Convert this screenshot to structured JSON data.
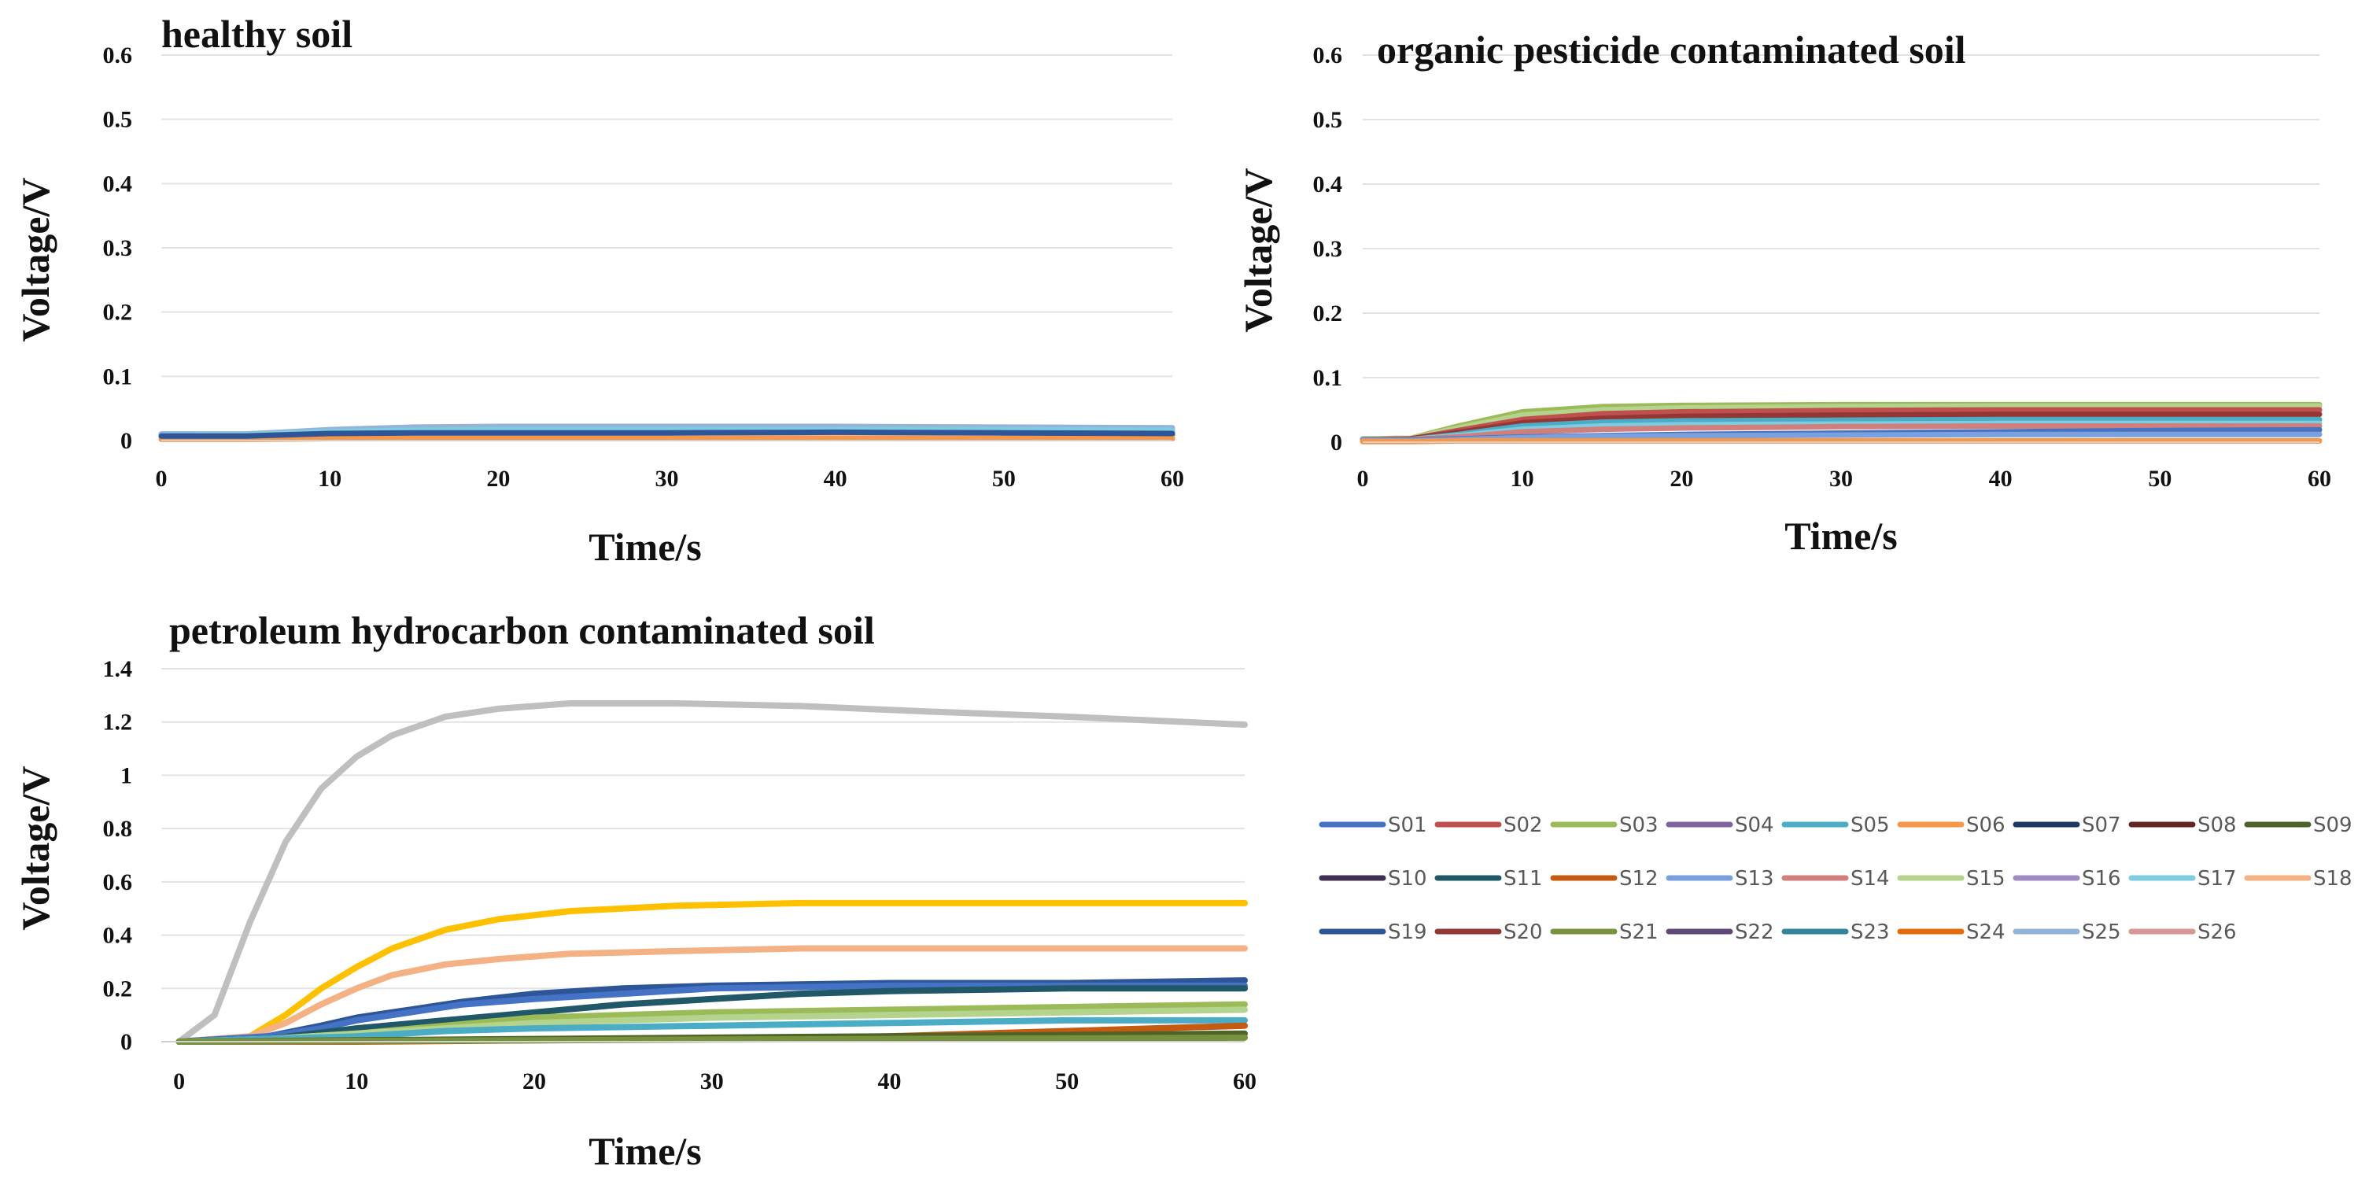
{
  "chart_data": [
    {
      "type": "line",
      "title": "healthy soil",
      "xlabel": "Time/s",
      "ylabel": "Voltage/V",
      "xlim": [
        0,
        60
      ],
      "ylim": [
        0,
        0.6
      ],
      "xticks": [
        "0",
        "10",
        "20",
        "30",
        "40",
        "50",
        "60"
      ],
      "yticks": [
        "0",
        "0.1",
        "0.2",
        "0.3",
        "0.4",
        "0.5",
        "0.6"
      ],
      "grid": true,
      "series_note": "26 overlapping traces S01-S26, all between 0 and 0.02 V",
      "series": [
        {
          "name": "S01",
          "x": [
            0,
            5,
            10,
            15,
            20,
            30,
            40,
            50,
            60
          ],
          "values": [
            0.008,
            0.008,
            0.012,
            0.013,
            0.013,
            0.013,
            0.014,
            0.013,
            0.012
          ]
        },
        {
          "name": "S07",
          "x": [
            0,
            5,
            10,
            15,
            20,
            30,
            40,
            50,
            60
          ],
          "values": [
            0.006,
            0.006,
            0.009,
            0.01,
            0.01,
            0.01,
            0.011,
            0.01,
            0.009
          ]
        },
        {
          "name": "S13",
          "x": [
            0,
            5,
            10,
            15,
            20,
            30,
            40,
            50,
            60
          ],
          "values": [
            0.01,
            0.01,
            0.016,
            0.019,
            0.02,
            0.02,
            0.02,
            0.02,
            0.019
          ]
        },
        {
          "name": "S25",
          "x": [
            0,
            5,
            10,
            15,
            20,
            30,
            40,
            50,
            60
          ],
          "values": [
            0.009,
            0.01,
            0.017,
            0.021,
            0.022,
            0.022,
            0.022,
            0.021,
            0.02
          ]
        },
        {
          "name": "S18",
          "x": [
            0,
            5,
            10,
            15,
            20,
            30,
            40,
            50,
            60
          ],
          "values": [
            0.004,
            0.004,
            0.005,
            0.005,
            0.005,
            0.005,
            0.005,
            0.005,
            0.005
          ]
        },
        {
          "name": "S06",
          "x": [
            0,
            5,
            10,
            15,
            20,
            30,
            40,
            50,
            60
          ],
          "values": [
            0.002,
            0.002,
            0.003,
            0.003,
            0.003,
            0.003,
            0.003,
            0.003,
            0.003
          ]
        },
        {
          "name": "S17",
          "x": [
            0,
            5,
            10,
            15,
            20,
            30,
            40,
            50,
            60
          ],
          "values": [
            0.008,
            0.009,
            0.014,
            0.016,
            0.017,
            0.017,
            0.017,
            0.017,
            0.016
          ]
        },
        {
          "name": "S19",
          "x": [
            0,
            5,
            10,
            15,
            20,
            30,
            40,
            50,
            60
          ],
          "values": [
            0.007,
            0.007,
            0.011,
            0.012,
            0.012,
            0.012,
            0.013,
            0.012,
            0.011
          ]
        }
      ]
    },
    {
      "type": "line",
      "title": "organic pesticide contaminated soil",
      "xlabel": "Time/s",
      "ylabel": "Voltage/V",
      "xlim": [
        0,
        60
      ],
      "ylim": [
        0,
        0.6
      ],
      "xticks": [
        "0",
        "10",
        "20",
        "30",
        "40",
        "50",
        "60"
      ],
      "yticks": [
        "0",
        "0.1",
        "0.2",
        "0.3",
        "0.4",
        "0.5",
        "0.6"
      ],
      "grid": true,
      "series_note": "26 overlapping traces S01-S26, all between 0 and 0.06 V",
      "series": [
        {
          "name": "S03",
          "x": [
            0,
            3,
            6,
            10,
            15,
            20,
            30,
            40,
            50,
            60
          ],
          "values": [
            0.005,
            0.006,
            0.025,
            0.047,
            0.055,
            0.057,
            0.058,
            0.058,
            0.058,
            0.058
          ]
        },
        {
          "name": "S15",
          "x": [
            0,
            3,
            6,
            10,
            15,
            20,
            30,
            40,
            50,
            60
          ],
          "values": [
            0.005,
            0.006,
            0.022,
            0.042,
            0.05,
            0.053,
            0.055,
            0.056,
            0.056,
            0.056
          ]
        },
        {
          "name": "S02",
          "x": [
            0,
            3,
            6,
            10,
            15,
            20,
            30,
            40,
            50,
            60
          ],
          "values": [
            0.004,
            0.005,
            0.018,
            0.035,
            0.044,
            0.047,
            0.049,
            0.05,
            0.05,
            0.05
          ]
        },
        {
          "name": "S20",
          "x": [
            0,
            3,
            6,
            10,
            15,
            20,
            30,
            40,
            50,
            60
          ],
          "values": [
            0.004,
            0.005,
            0.015,
            0.03,
            0.037,
            0.04,
            0.042,
            0.043,
            0.043,
            0.043
          ]
        },
        {
          "name": "S05",
          "x": [
            0,
            3,
            6,
            10,
            15,
            20,
            30,
            40,
            50,
            60
          ],
          "values": [
            0.004,
            0.004,
            0.012,
            0.025,
            0.031,
            0.033,
            0.034,
            0.035,
            0.035,
            0.035
          ]
        },
        {
          "name": "S17",
          "x": [
            0,
            3,
            6,
            10,
            15,
            20,
            30,
            40,
            50,
            60
          ],
          "values": [
            0.003,
            0.004,
            0.01,
            0.02,
            0.025,
            0.027,
            0.028,
            0.029,
            0.029,
            0.029
          ]
        },
        {
          "name": "S14",
          "x": [
            0,
            3,
            6,
            10,
            15,
            20,
            30,
            40,
            50,
            60
          ],
          "values": [
            0.003,
            0.004,
            0.008,
            0.016,
            0.02,
            0.022,
            0.024,
            0.025,
            0.025,
            0.025
          ]
        },
        {
          "name": "S01",
          "x": [
            0,
            3,
            6,
            10,
            15,
            20,
            30,
            40,
            50,
            60
          ],
          "values": [
            0.002,
            0.003,
            0.005,
            0.008,
            0.01,
            0.012,
            0.014,
            0.016,
            0.018,
            0.019
          ]
        },
        {
          "name": "S13",
          "x": [
            0,
            3,
            6,
            10,
            15,
            20,
            30,
            40,
            50,
            60
          ],
          "values": [
            0.002,
            0.002,
            0.004,
            0.007,
            0.009,
            0.01,
            0.011,
            0.012,
            0.012,
            0.012
          ]
        },
        {
          "name": "S06",
          "x": [
            0,
            3,
            6,
            10,
            15,
            20,
            30,
            40,
            50,
            60
          ],
          "values": [
            0.001,
            0.001,
            0.002,
            0.002,
            0.002,
            0.002,
            0.002,
            0.002,
            0.002,
            0.002
          ]
        }
      ]
    },
    {
      "type": "line",
      "title": "petroleum hydrocarbon contaminated soil",
      "xlabel": "Time/s",
      "ylabel": "Voltage/V",
      "xlim": [
        -1,
        60
      ],
      "ylim": [
        0,
        1.4
      ],
      "xticks": [
        "0",
        "10",
        "20",
        "30",
        "40",
        "50",
        "60"
      ],
      "yticks": [
        "0",
        "0.2",
        "0.4",
        "0.6",
        "0.8",
        "1",
        "1.2",
        "1.4"
      ],
      "grid": true,
      "series": [
        {
          "name": "S25",
          "x": [
            0,
            2,
            4,
            6,
            8,
            10,
            12,
            15,
            18,
            22,
            28,
            35,
            42,
            50,
            60
          ],
          "values": [
            0.0,
            0.1,
            0.45,
            0.75,
            0.95,
            1.07,
            1.15,
            1.22,
            1.25,
            1.27,
            1.27,
            1.26,
            1.24,
            1.22,
            1.19
          ]
        },
        {
          "name": "S24",
          "x": [
            0,
            4,
            6,
            8,
            10,
            12,
            15,
            18,
            22,
            28,
            35,
            45,
            60
          ],
          "values": [
            0.0,
            0.02,
            0.1,
            0.2,
            0.28,
            0.35,
            0.42,
            0.46,
            0.49,
            0.51,
            0.52,
            0.52,
            0.52
          ]
        },
        {
          "name": "S18",
          "x": [
            0,
            4,
            6,
            8,
            10,
            12,
            15,
            18,
            22,
            28,
            35,
            45,
            60
          ],
          "values": [
            0.0,
            0.02,
            0.07,
            0.14,
            0.2,
            0.25,
            0.29,
            0.31,
            0.33,
            0.34,
            0.35,
            0.35,
            0.35
          ]
        },
        {
          "name": "S19",
          "x": [
            0,
            5,
            8,
            10,
            13,
            16,
            20,
            25,
            30,
            40,
            50,
            60
          ],
          "values": [
            0.0,
            0.02,
            0.06,
            0.09,
            0.12,
            0.15,
            0.18,
            0.2,
            0.21,
            0.22,
            0.22,
            0.23
          ]
        },
        {
          "name": "S01",
          "x": [
            0,
            5,
            8,
            10,
            13,
            16,
            20,
            25,
            30,
            40,
            50,
            60
          ],
          "values": [
            0.0,
            0.02,
            0.05,
            0.08,
            0.11,
            0.14,
            0.16,
            0.18,
            0.2,
            0.21,
            0.21,
            0.21
          ]
        },
        {
          "name": "S11",
          "x": [
            0,
            5,
            10,
            15,
            20,
            25,
            30,
            35,
            40,
            50,
            60
          ],
          "values": [
            0.0,
            0.01,
            0.05,
            0.08,
            0.11,
            0.14,
            0.16,
            0.18,
            0.19,
            0.2,
            0.2
          ]
        },
        {
          "name": "S03",
          "x": [
            0,
            5,
            10,
            15,
            20,
            30,
            40,
            50,
            60
          ],
          "values": [
            0.0,
            0.01,
            0.03,
            0.06,
            0.09,
            0.11,
            0.12,
            0.13,
            0.14
          ]
        },
        {
          "name": "S15",
          "x": [
            0,
            5,
            10,
            15,
            20,
            30,
            40,
            50,
            60
          ],
          "values": [
            0.0,
            0.01,
            0.03,
            0.05,
            0.07,
            0.09,
            0.1,
            0.11,
            0.12
          ]
        },
        {
          "name": "S05",
          "x": [
            0,
            5,
            10,
            15,
            20,
            30,
            40,
            50,
            60
          ],
          "values": [
            0.0,
            0.01,
            0.02,
            0.04,
            0.05,
            0.06,
            0.07,
            0.08,
            0.08
          ]
        },
        {
          "name": "S12",
          "x": [
            0,
            10,
            20,
            30,
            40,
            50,
            60
          ],
          "values": [
            0.0,
            0.0,
            0.005,
            0.01,
            0.02,
            0.04,
            0.06
          ]
        },
        {
          "name": "S09",
          "x": [
            0,
            10,
            20,
            30,
            40,
            50,
            60
          ],
          "values": [
            0.0,
            0.005,
            0.01,
            0.015,
            0.02,
            0.025,
            0.03
          ]
        },
        {
          "name": "S21",
          "x": [
            0,
            10,
            20,
            30,
            40,
            50,
            60
          ],
          "values": [
            0.0,
            0.003,
            0.005,
            0.008,
            0.01,
            0.012,
            0.015
          ]
        }
      ]
    }
  ],
  "legend": {
    "placement": "right, below top-right panel",
    "items": [
      {
        "name": "S01",
        "color": "#4472C4"
      },
      {
        "name": "S02",
        "color": "#C0504D"
      },
      {
        "name": "S03",
        "color": "#9BBB59"
      },
      {
        "name": "S04",
        "color": "#8064A2"
      },
      {
        "name": "S05",
        "color": "#4BACC6"
      },
      {
        "name": "S06",
        "color": "#F79646"
      },
      {
        "name": "S07",
        "color": "#1F3864"
      },
      {
        "name": "S08",
        "color": "#632523"
      },
      {
        "name": "S09",
        "color": "#4F6228"
      },
      {
        "name": "S10",
        "color": "#403152"
      },
      {
        "name": "S11",
        "color": "#215867"
      },
      {
        "name": "S12",
        "color": "#C55A11"
      },
      {
        "name": "S13",
        "color": "#7AA0DD"
      },
      {
        "name": "S14",
        "color": "#D07F7D"
      },
      {
        "name": "S15",
        "color": "#B4D38C"
      },
      {
        "name": "S16",
        "color": "#A28BC2"
      },
      {
        "name": "S17",
        "color": "#7FCBE0"
      },
      {
        "name": "S18",
        "color": "#F4B183"
      },
      {
        "name": "S19",
        "color": "#2E5597"
      },
      {
        "name": "S20",
        "color": "#943634"
      },
      {
        "name": "S21",
        "color": "#76923C"
      },
      {
        "name": "S22",
        "color": "#5F497A"
      },
      {
        "name": "S23",
        "color": "#31859C"
      },
      {
        "name": "S24",
        "color": "#E46C0A"
      },
      {
        "name": "S25",
        "color": "#95B3D7"
      },
      {
        "name": "S26",
        "color": "#DA9694"
      }
    ]
  },
  "series_colors_override": {
    "S24_panel3": "#FFC000",
    "S25_panel3": "#BFBFBF",
    "S18_panel3": "#F4B183"
  }
}
